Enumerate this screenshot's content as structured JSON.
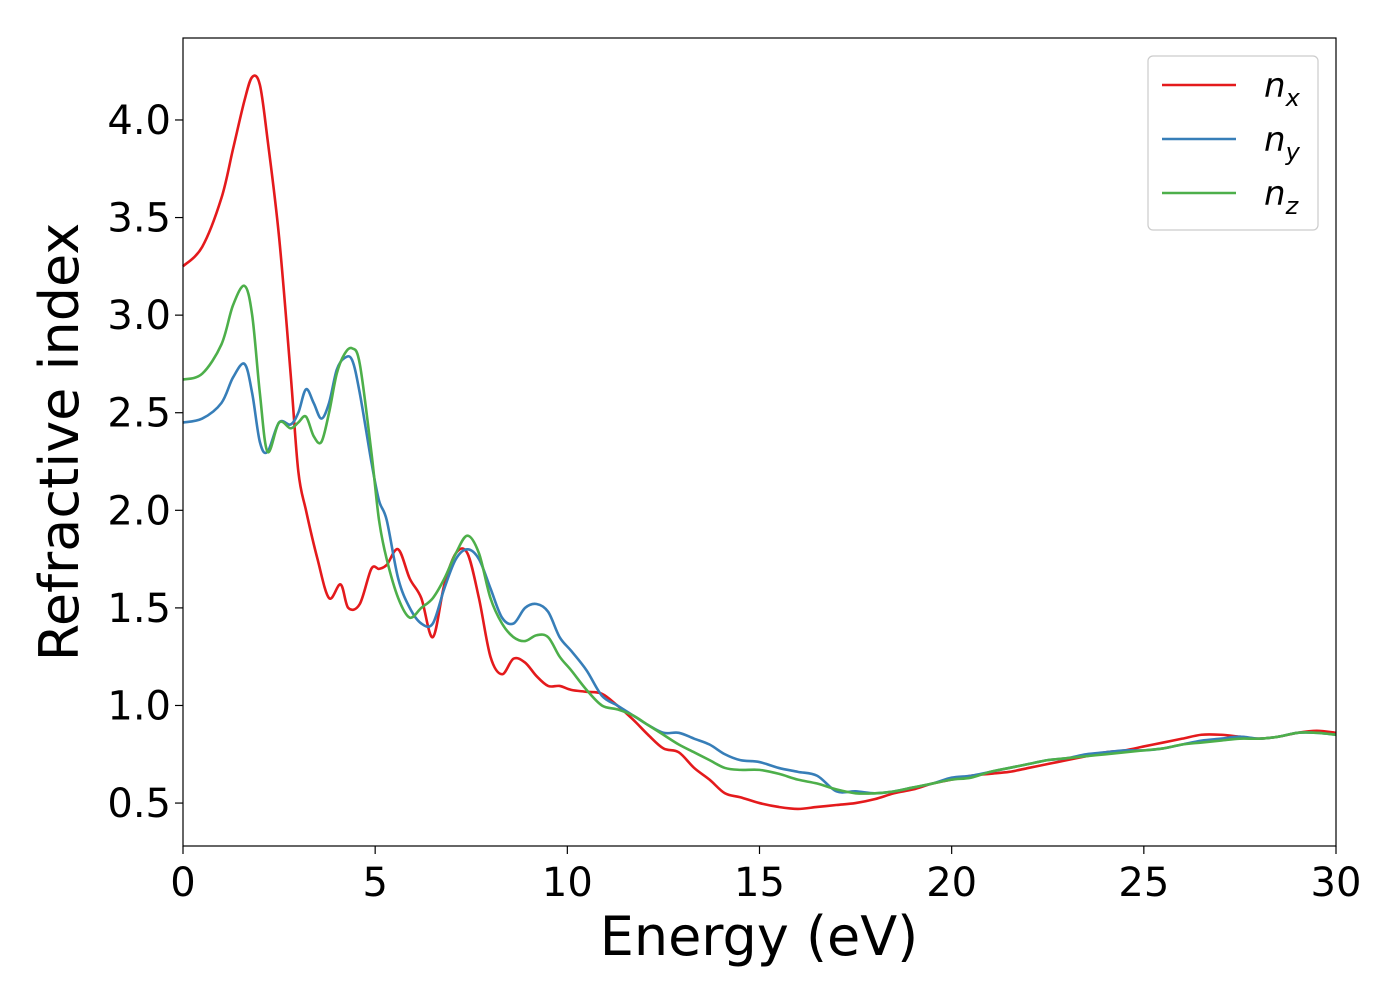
{
  "chart_data": {
    "type": "line",
    "title": "",
    "xlabel": "Energy (eV)",
    "ylabel": "Refractive index",
    "xlim": [
      0,
      30
    ],
    "ylim": [
      0.28,
      4.42
    ],
    "xticks": [
      0,
      5,
      10,
      15,
      20,
      25,
      30
    ],
    "yticks": [
      0.5,
      1.0,
      1.5,
      2.0,
      2.5,
      3.0,
      3.5,
      4.0
    ],
    "xtick_labels": [
      "0",
      "5",
      "10",
      "15",
      "20",
      "25",
      "30"
    ],
    "ytick_labels": [
      "0.5",
      "1.0",
      "1.5",
      "2.0",
      "2.5",
      "3.0",
      "3.5",
      "4.0"
    ],
    "grid": false,
    "legend_position": "top-right",
    "series": [
      {
        "name": "n_x",
        "legend_base": "n",
        "legend_sub": "x",
        "color": "#e41a1c",
        "x": [
          0,
          0.5,
          1.0,
          1.3,
          1.6,
          1.8,
          2.0,
          2.2,
          2.5,
          2.8,
          3.0,
          3.2,
          3.5,
          3.8,
          4.1,
          4.3,
          4.6,
          4.9,
          5.1,
          5.3,
          5.6,
          5.9,
          6.2,
          6.5,
          6.8,
          7.1,
          7.4,
          7.7,
          8.0,
          8.3,
          8.6,
          8.9,
          9.2,
          9.5,
          9.8,
          10.1,
          10.5,
          10.9,
          11.3,
          11.7,
          12.1,
          12.5,
          12.9,
          13.3,
          13.7,
          14.1,
          14.5,
          15.0,
          15.5,
          16.0,
          16.5,
          17.0,
          17.5,
          18.0,
          18.5,
          19.0,
          19.5,
          20.0,
          20.5,
          21.0,
          21.5,
          22.0,
          22.5,
          23.0,
          23.5,
          24.0,
          24.5,
          25.0,
          25.5,
          26.0,
          26.5,
          27.0,
          27.5,
          28.0,
          28.5,
          29.0,
          29.5,
          30.0
        ],
        "y": [
          3.25,
          3.35,
          3.6,
          3.85,
          4.1,
          4.22,
          4.18,
          3.9,
          3.4,
          2.7,
          2.2,
          2.0,
          1.75,
          1.55,
          1.62,
          1.5,
          1.52,
          1.7,
          1.7,
          1.72,
          1.8,
          1.65,
          1.55,
          1.35,
          1.62,
          1.78,
          1.78,
          1.55,
          1.25,
          1.16,
          1.24,
          1.22,
          1.15,
          1.1,
          1.1,
          1.08,
          1.07,
          1.06,
          1.0,
          0.93,
          0.85,
          0.78,
          0.76,
          0.68,
          0.62,
          0.55,
          0.53,
          0.5,
          0.48,
          0.47,
          0.48,
          0.49,
          0.5,
          0.52,
          0.55,
          0.57,
          0.6,
          0.62,
          0.64,
          0.65,
          0.66,
          0.68,
          0.7,
          0.72,
          0.74,
          0.76,
          0.77,
          0.79,
          0.81,
          0.83,
          0.85,
          0.85,
          0.84,
          0.83,
          0.84,
          0.86,
          0.87,
          0.86
        ]
      },
      {
        "name": "n_y",
        "legend_base": "n",
        "legend_sub": "y",
        "color": "#377eb8",
        "x": [
          0,
          0.5,
          1.0,
          1.3,
          1.6,
          1.8,
          2.0,
          2.2,
          2.5,
          2.8,
          3.0,
          3.2,
          3.4,
          3.6,
          3.8,
          4.0,
          4.2,
          4.4,
          4.6,
          4.9,
          5.1,
          5.3,
          5.6,
          5.9,
          6.2,
          6.5,
          6.8,
          7.1,
          7.4,
          7.7,
          8.0,
          8.3,
          8.6,
          8.9,
          9.2,
          9.5,
          9.8,
          10.1,
          10.5,
          10.9,
          11.3,
          11.7,
          12.1,
          12.5,
          12.9,
          13.3,
          13.7,
          14.1,
          14.5,
          15.0,
          15.5,
          16.0,
          16.5,
          17.0,
          17.5,
          18.0,
          18.5,
          19.0,
          19.5,
          20.0,
          20.5,
          21.0,
          21.5,
          22.0,
          22.5,
          23.0,
          23.5,
          24.0,
          24.5,
          25.0,
          25.5,
          26.0,
          26.5,
          27.0,
          27.5,
          28.0,
          28.5,
          29.0,
          29.5,
          30.0
        ],
        "y": [
          2.45,
          2.47,
          2.55,
          2.68,
          2.75,
          2.6,
          2.35,
          2.3,
          2.45,
          2.44,
          2.5,
          2.62,
          2.55,
          2.47,
          2.55,
          2.72,
          2.78,
          2.77,
          2.6,
          2.25,
          2.05,
          1.95,
          1.65,
          1.5,
          1.42,
          1.42,
          1.6,
          1.75,
          1.8,
          1.75,
          1.6,
          1.45,
          1.42,
          1.5,
          1.52,
          1.48,
          1.35,
          1.28,
          1.18,
          1.05,
          1.0,
          0.95,
          0.9,
          0.86,
          0.86,
          0.83,
          0.8,
          0.75,
          0.72,
          0.71,
          0.68,
          0.66,
          0.64,
          0.56,
          0.56,
          0.55,
          0.56,
          0.58,
          0.6,
          0.63,
          0.64,
          0.66,
          0.68,
          0.7,
          0.72,
          0.73,
          0.75,
          0.76,
          0.77,
          0.77,
          0.78,
          0.8,
          0.82,
          0.83,
          0.84,
          0.83,
          0.84,
          0.86,
          0.86,
          0.85
        ]
      },
      {
        "name": "n_z",
        "legend_base": "n",
        "legend_sub": "z",
        "color": "#4daf4a",
        "x": [
          0,
          0.5,
          1.0,
          1.3,
          1.6,
          1.8,
          2.0,
          2.2,
          2.5,
          2.8,
          3.0,
          3.2,
          3.4,
          3.6,
          3.8,
          4.0,
          4.2,
          4.4,
          4.6,
          4.9,
          5.1,
          5.3,
          5.6,
          5.9,
          6.2,
          6.5,
          6.8,
          7.1,
          7.4,
          7.7,
          8.0,
          8.3,
          8.6,
          8.9,
          9.2,
          9.5,
          9.8,
          10.1,
          10.5,
          10.9,
          11.3,
          11.7,
          12.1,
          12.5,
          12.9,
          13.3,
          13.7,
          14.1,
          14.5,
          15.0,
          15.5,
          16.0,
          16.5,
          17.0,
          17.5,
          18.0,
          18.5,
          19.0,
          19.5,
          20.0,
          20.5,
          21.0,
          21.5,
          22.0,
          22.5,
          23.0,
          23.5,
          24.0,
          24.5,
          25.0,
          25.5,
          26.0,
          26.5,
          27.0,
          27.5,
          28.0,
          28.5,
          29.0,
          29.5,
          30.0
        ],
        "y": [
          2.67,
          2.7,
          2.85,
          3.05,
          3.15,
          3.0,
          2.6,
          2.3,
          2.45,
          2.42,
          2.45,
          2.48,
          2.38,
          2.35,
          2.5,
          2.7,
          2.8,
          2.83,
          2.75,
          2.3,
          1.95,
          1.75,
          1.55,
          1.45,
          1.5,
          1.55,
          1.65,
          1.78,
          1.87,
          1.78,
          1.55,
          1.42,
          1.35,
          1.33,
          1.36,
          1.35,
          1.25,
          1.18,
          1.08,
          1.0,
          0.98,
          0.95,
          0.9,
          0.85,
          0.8,
          0.76,
          0.72,
          0.68,
          0.67,
          0.67,
          0.65,
          0.62,
          0.6,
          0.57,
          0.55,
          0.55,
          0.56,
          0.58,
          0.6,
          0.62,
          0.63,
          0.66,
          0.68,
          0.7,
          0.72,
          0.73,
          0.74,
          0.75,
          0.76,
          0.77,
          0.78,
          0.8,
          0.81,
          0.82,
          0.83,
          0.83,
          0.84,
          0.86,
          0.86,
          0.85
        ]
      }
    ]
  }
}
